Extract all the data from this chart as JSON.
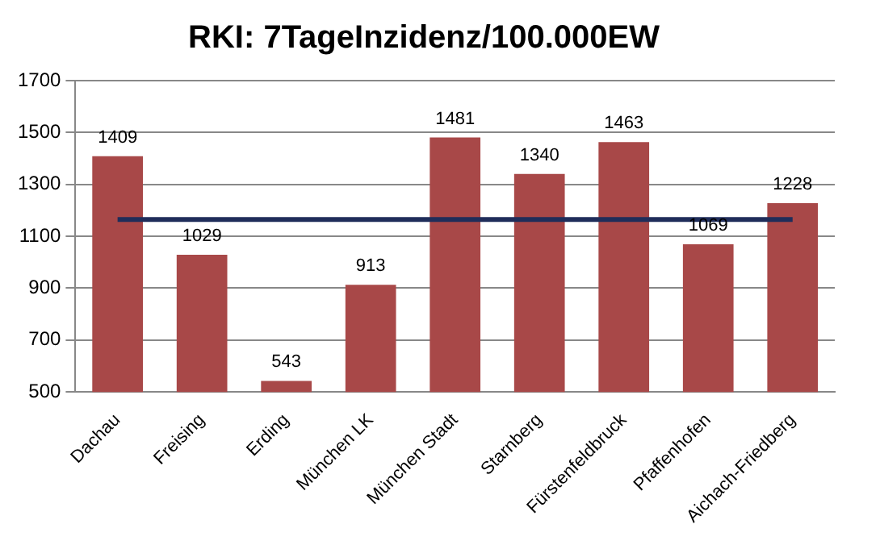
{
  "chart_data": {
    "type": "bar",
    "title": "RKI: 7TageInzidenz/100.000EW",
    "categories": [
      "Dachau",
      "Freising",
      "Erding",
      "München LK",
      "München Stadt",
      "Starnberg",
      "Fürstenfeldbruck",
      "Pfaffenhofen",
      "Aichach-Friedberg"
    ],
    "values": [
      1409,
      1029,
      543,
      913,
      1481,
      1340,
      1463,
      1069,
      1228
    ],
    "color": "#a84848",
    "ylim": [
      500,
      1700
    ],
    "yticks": [
      500,
      700,
      900,
      1100,
      1300,
      1500,
      1700
    ],
    "grid": "y",
    "data_labels": true,
    "ref_lines": [
      {
        "axis": "y",
        "value": 1165,
        "color": "#1f2d5a"
      }
    ]
  }
}
